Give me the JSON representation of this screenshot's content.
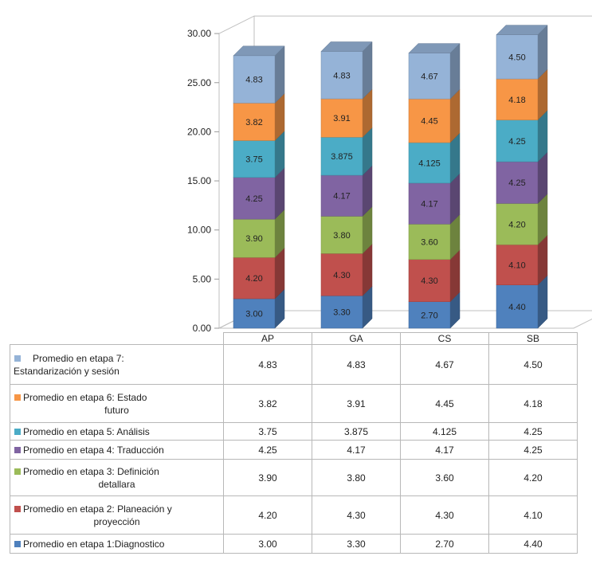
{
  "chart_data": {
    "type": "bar",
    "stacked": true,
    "three_d": true,
    "categories": [
      "AP",
      "GA",
      "CS",
      "SB"
    ],
    "ylim": [
      0,
      30
    ],
    "y_ticks": [
      "0.00",
      "5.00",
      "10.00",
      "15.00",
      "20.00",
      "25.00",
      "30.00"
    ],
    "grid": false,
    "legend": "data-table",
    "series": [
      {
        "name": "Promedio en etapa 1:Diagnostico",
        "color": "#4f81bd",
        "values": [
          3.0,
          3.3,
          2.7,
          4.4
        ],
        "labels": [
          "3.00",
          "3.30",
          "2.70",
          "4.40"
        ]
      },
      {
        "name": "Promedio en etapa 2: Planeación y proyección",
        "color": "#c0504d",
        "values": [
          4.2,
          4.3,
          4.3,
          4.1
        ],
        "labels": [
          "4.20",
          "4.30",
          "4.30",
          "4.10"
        ]
      },
      {
        "name": "Promedio en etapa 3: Definición detallara",
        "color": "#9bbb59",
        "values": [
          3.9,
          3.8,
          3.6,
          4.2
        ],
        "labels": [
          "3.90",
          "3.80",
          "3.60",
          "4.20"
        ]
      },
      {
        "name": "Promedio en etapa 4: Traducción",
        "color": "#8064a2",
        "values": [
          4.25,
          4.17,
          4.17,
          4.25
        ],
        "labels": [
          "4.25",
          "4.17",
          "4.17",
          "4.25"
        ]
      },
      {
        "name": "Promedio en etapa 5: Análisis",
        "color": "#4bacc6",
        "values": [
          3.75,
          3.875,
          4.125,
          4.25
        ],
        "labels": [
          "3.75",
          "3.875",
          "4.125",
          "4.25"
        ]
      },
      {
        "name": "Promedio en etapa 6: Estado futuro",
        "color": "#f79646",
        "values": [
          3.82,
          3.91,
          4.45,
          4.18
        ],
        "labels": [
          "3.82",
          "3.91",
          "4.45",
          "4.18"
        ]
      },
      {
        "name": "Promedio en etapa 7: Estandarización y sesión",
        "color": "#95b3d7",
        "values": [
          4.83,
          4.83,
          4.67,
          4.5
        ],
        "labels": [
          "4.83",
          "4.83",
          "4.67",
          "4.50"
        ]
      }
    ]
  },
  "table": {
    "rows": [
      {
        "label_line1": "Promedio en etapa 7:",
        "label_line2": "Estandarización y sesión",
        "color": "#95b3d7",
        "values": [
          "4.83",
          "4.83",
          "4.67",
          "4.50"
        ]
      },
      {
        "label_line1": "Promedio en etapa 6: Estado",
        "label_line2": "futuro",
        "color": "#f79646",
        "values": [
          "3.82",
          "3.91",
          "4.45",
          "4.18"
        ]
      },
      {
        "label_line1": "Promedio en etapa 5: Análisis",
        "label_line2": "",
        "color": "#4bacc6",
        "values": [
          "3.75",
          "3.875",
          "4.125",
          "4.25"
        ]
      },
      {
        "label_line1": "Promedio en etapa 4: Traducción",
        "label_line2": "",
        "color": "#8064a2",
        "values": [
          "4.25",
          "4.17",
          "4.17",
          "4.25"
        ]
      },
      {
        "label_line1": "Promedio en etapa 3: Definición",
        "label_line2": "detallara",
        "color": "#9bbb59",
        "values": [
          "3.90",
          "3.80",
          "3.60",
          "4.20"
        ]
      },
      {
        "label_line1": "Promedio en etapa 2: Planeación y",
        "label_line2": "proyección",
        "color": "#c0504d",
        "values": [
          "4.20",
          "4.30",
          "4.30",
          "4.10"
        ]
      },
      {
        "label_line1": "Promedio en etapa 1:Diagnostico",
        "label_line2": "",
        "color": "#4f81bd",
        "values": [
          "3.00",
          "3.30",
          "2.70",
          "4.40"
        ]
      }
    ]
  }
}
